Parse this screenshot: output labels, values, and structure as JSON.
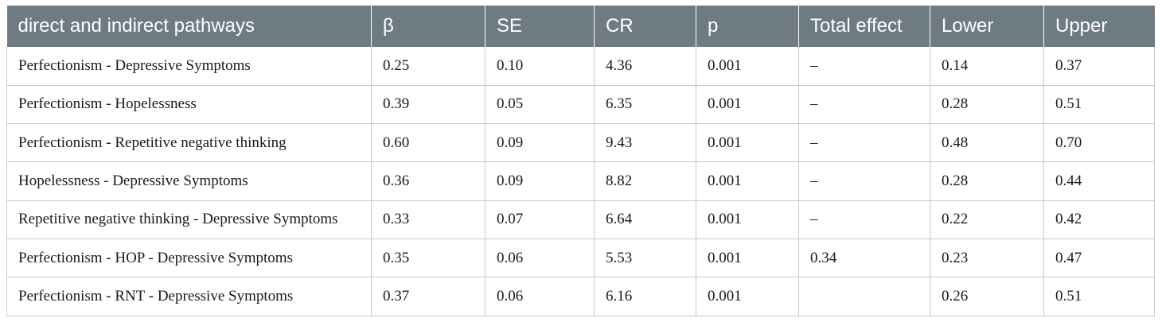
{
  "table": {
    "headers": [
      "direct and indirect pathways",
      "β",
      "SE",
      "CR",
      "p",
      "Total effect",
      "Lower",
      "Upper"
    ],
    "rows": [
      [
        "Perfectionism - Depressive Symptoms",
        "0.25",
        "0.10",
        "4.36",
        "0.001",
        "–",
        "0.14",
        "0.37"
      ],
      [
        "Perfectionism - Hopelessness",
        "0.39",
        "0.05",
        "6.35",
        "0.001",
        "–",
        "0.28",
        "0.51"
      ],
      [
        "Perfectionism - Repetitive negative thinking",
        "0.60",
        "0.09",
        "9.43",
        "0.001",
        "–",
        "0.48",
        "0.70"
      ],
      [
        "Hopelessness - Depressive Symptoms",
        "0.36",
        "0.09",
        "8.82",
        "0.001",
        "–",
        "0.28",
        "0.44"
      ],
      [
        "Repetitive negative thinking - Depressive Symptoms",
        "0.33",
        "0.07",
        "6.64",
        "0.001",
        "–",
        "0.22",
        "0.42"
      ],
      [
        "Perfectionism - HOP - Depressive Symptoms",
        "0.35",
        "0.06",
        "5.53",
        "0.001",
        "0.34",
        "0.23",
        "0.47"
      ],
      [
        "Perfectionism - RNT - Depressive Symptoms",
        "0.37",
        "0.06",
        "6.16",
        "0.001",
        "",
        "0.26",
        "0.51"
      ]
    ]
  }
}
